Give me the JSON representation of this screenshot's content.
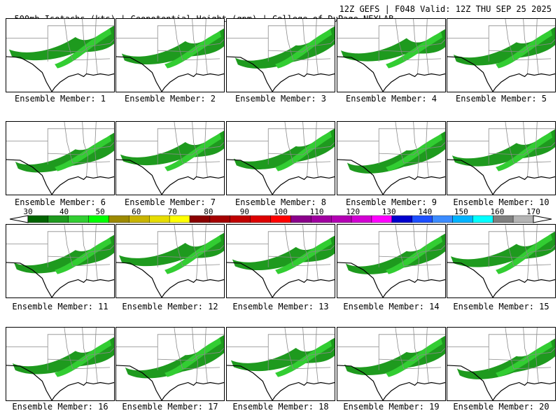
{
  "header": {
    "left": "500mb Isotachs (kts) | Geopotential Height (gpm) | College of DuPage NEXLAB",
    "right": "12Z GEFS | F048 Valid: 12Z THU SEP 25 2025"
  },
  "members": [
    "Ensemble Member: 1",
    "Ensemble Member: 2",
    "Ensemble Member: 3",
    "Ensemble Member: 4",
    "Ensemble Member: 5",
    "Ensemble Member: 6",
    "Ensemble Member: 7",
    "Ensemble Member: 8",
    "Ensemble Member: 9",
    "Ensemble Member: 10",
    "Ensemble Member: 11",
    "Ensemble Member: 12",
    "Ensemble Member: 13",
    "Ensemble Member: 14",
    "Ensemble Member: 15",
    "Ensemble Member: 16",
    "Ensemble Member: 17",
    "Ensemble Member: 18",
    "Ensemble Member: 19",
    "Ensemble Member: 20"
  ],
  "scale": {
    "labels": [
      "30",
      "40",
      "50",
      "60",
      "70",
      "80",
      "90",
      "100",
      "110",
      "120",
      "130",
      "140",
      "150",
      "160",
      "170"
    ],
    "colors": [
      "#006400",
      "#1e9a1e",
      "#32cd32",
      "#00ff00",
      "#9c8a00",
      "#c8b400",
      "#e6dc00",
      "#ffff00",
      "#8b0000",
      "#a50000",
      "#c00000",
      "#dc0000",
      "#ff0000",
      "#8b008b",
      "#a000a0",
      "#b400b4",
      "#d200d2",
      "#ff00ff",
      "#0000cd",
      "#1e50ff",
      "#3c8cff",
      "#00b4ff",
      "#00ffff",
      "#808080",
      "#b4b4b4"
    ]
  }
}
